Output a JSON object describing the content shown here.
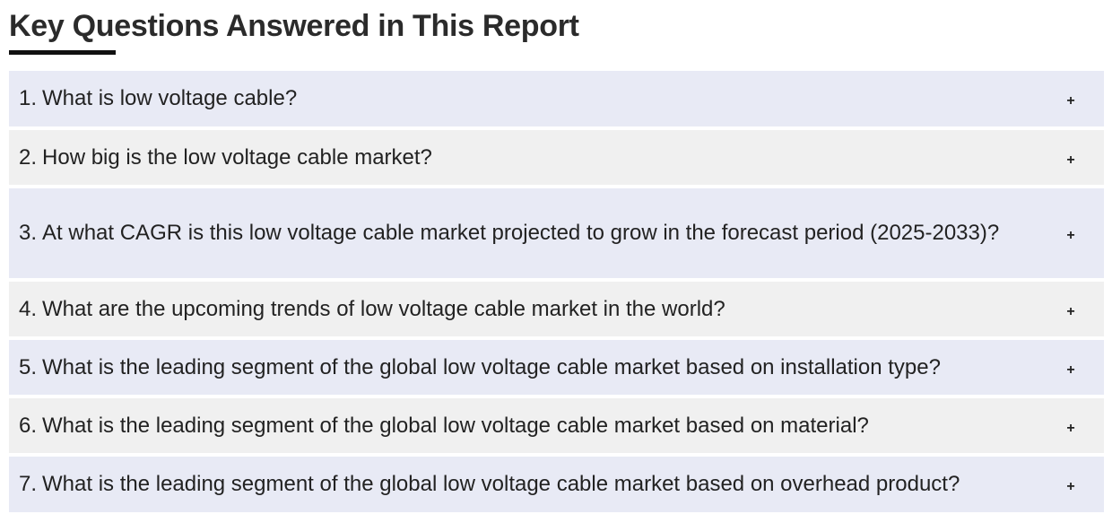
{
  "heading": "Key Questions Answered in This Report",
  "toggle_symbol": "+",
  "faq": [
    {
      "num": "1.",
      "text": "What is low voltage cable?"
    },
    {
      "num": "2.",
      "text": "How big is the low voltage cable market?"
    },
    {
      "num": "3.",
      "text": "At what CAGR is this low voltage cable market projected to grow in the forecast period (2025-2033)?"
    },
    {
      "num": "4.",
      "text": "What are the upcoming trends of low voltage cable market in the world?"
    },
    {
      "num": "5.",
      "text": "What is the leading segment of the global low voltage cable market based on installation type?"
    },
    {
      "num": "6.",
      "text": "What is the leading segment of the global low voltage cable market based on material?"
    },
    {
      "num": "7.",
      "text": "What is the leading segment of the global low voltage cable market based on overhead product?"
    }
  ],
  "colors": {
    "row_odd": "#e8eaf5",
    "row_even": "#f0f0f0",
    "underline": "#111111"
  }
}
